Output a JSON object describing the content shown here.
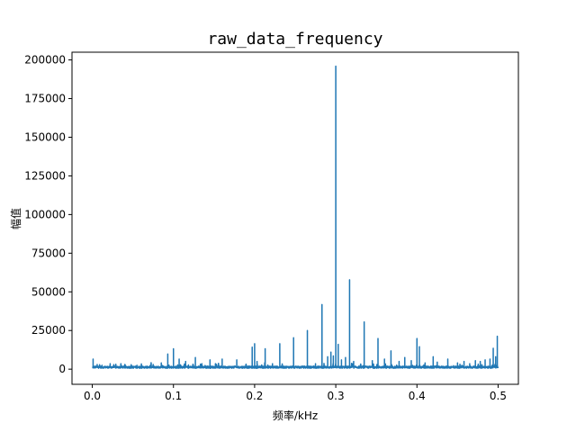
{
  "chart_data": {
    "type": "line",
    "title": "raw_data_frequency",
    "xlabel": "频率/kHz",
    "ylabel": "幅值",
    "xlim": [
      -0.025,
      0.525
    ],
    "ylim": [
      -9800,
      205000
    ],
    "xticks": [
      0.0,
      0.1,
      0.2,
      0.3,
      0.4,
      0.5
    ],
    "xtick_labels": [
      "0.0",
      "0.1",
      "0.2",
      "0.3",
      "0.4",
      "0.5"
    ],
    "yticks": [
      0,
      25000,
      50000,
      75000,
      100000,
      125000,
      150000,
      175000,
      200000
    ],
    "ytick_labels": [
      "0",
      "25000",
      "50000",
      "75000",
      "100000",
      "125000",
      "150000",
      "175000",
      "200000"
    ],
    "grid": false,
    "legend": "none",
    "series_color": "#1f77b4",
    "series": [
      {
        "peaks": [
          [
            0.001,
            6500
          ],
          [
            0.006,
            3000
          ],
          [
            0.012,
            2500
          ],
          [
            0.022,
            3500
          ],
          [
            0.04,
            3000
          ],
          [
            0.055,
            2500
          ],
          [
            0.075,
            3000
          ],
          [
            0.085,
            4000
          ],
          [
            0.093,
            9800
          ],
          [
            0.1,
            13200
          ],
          [
            0.107,
            6500
          ],
          [
            0.115,
            5000
          ],
          [
            0.127,
            7500
          ],
          [
            0.135,
            3500
          ],
          [
            0.145,
            6000
          ],
          [
            0.16,
            6500
          ],
          [
            0.178,
            6000
          ],
          [
            0.197,
            14200
          ],
          [
            0.2,
            16500
          ],
          [
            0.203,
            5000
          ],
          [
            0.213,
            13200
          ],
          [
            0.222,
            3500
          ],
          [
            0.231,
            16500
          ],
          [
            0.248,
            20300
          ],
          [
            0.265,
            25000
          ],
          [
            0.275,
            3500
          ],
          [
            0.283,
            41800
          ],
          [
            0.29,
            8000
          ],
          [
            0.294,
            11000
          ],
          [
            0.297,
            8500
          ],
          [
            0.3,
            196000
          ],
          [
            0.303,
            16000
          ],
          [
            0.307,
            6000
          ],
          [
            0.312,
            7500
          ],
          [
            0.317,
            57800
          ],
          [
            0.322,
            5000
          ],
          [
            0.335,
            30500
          ],
          [
            0.345,
            5500
          ],
          [
            0.352,
            19800
          ],
          [
            0.36,
            6500
          ],
          [
            0.368,
            11800
          ],
          [
            0.378,
            5000
          ],
          [
            0.385,
            7500
          ],
          [
            0.393,
            5500
          ],
          [
            0.4,
            19800
          ],
          [
            0.403,
            14500
          ],
          [
            0.41,
            4000
          ],
          [
            0.42,
            8000
          ],
          [
            0.425,
            4500
          ],
          [
            0.438,
            6500
          ],
          [
            0.45,
            4000
          ],
          [
            0.458,
            5000
          ],
          [
            0.465,
            3500
          ],
          [
            0.472,
            5500
          ],
          [
            0.478,
            5000
          ],
          [
            0.484,
            6000
          ],
          [
            0.49,
            6500
          ],
          [
            0.494,
            13500
          ],
          [
            0.497,
            8000
          ],
          [
            0.499,
            21300
          ]
        ],
        "noise_floor": 1500
      }
    ]
  }
}
